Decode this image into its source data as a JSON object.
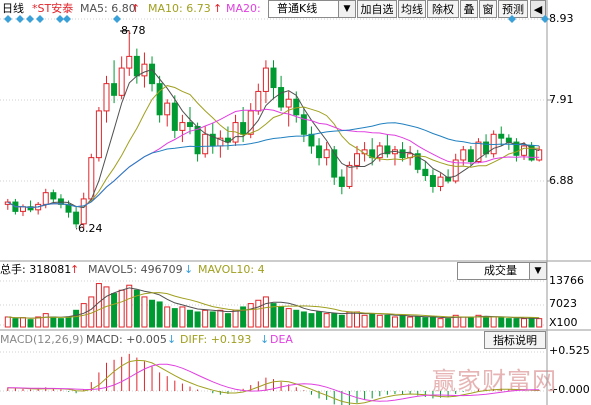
{
  "header": {
    "period": "日线",
    "stock": "*ST安泰",
    "ma5": "MA5: 6.80",
    "ma10": "MA10: 6.73",
    "ma20": "MA20:",
    "ma5_arrow": "↑",
    "ma10_arrow": "↑"
  },
  "toolbar": {
    "kline_select": "普通K线",
    "buttons": [
      "加自选",
      "均线",
      "除权",
      "叠",
      "窗",
      "预测"
    ],
    "close_label": "◀"
  },
  "price_axis": [
    "8.93",
    "7.91",
    "6.88"
  ],
  "annotations": {
    "high": "8.78",
    "low": "6.24"
  },
  "volume": {
    "total": "总手: 318081",
    "total_arrow": "↑",
    "mavol5": "MAVOL5: 496709",
    "mavol5_arrow": "↓",
    "mavol10": "MAVOL10: 4",
    "select": "成交量",
    "axis": [
      "13766",
      "7023",
      "X100"
    ]
  },
  "macd": {
    "params": "MACD(12,26,9)",
    "macd": "MACD: +0.005",
    "macd_arrow": "↓",
    "diff": "DIFF: +0.193",
    "diff_arrow": "↓",
    "dea": "DEA",
    "button": "指标说明",
    "axis": [
      "+0.525",
      "+0.000"
    ]
  },
  "watermark": "赢家财富网",
  "colors": {
    "up": "#e0242a",
    "down": "#009a32",
    "ma5": "#505050",
    "ma10": "#a0a020",
    "ma20": "#e040e0",
    "ma60": "#2080c0",
    "diamond": "#3aa0d8"
  },
  "chart_data": {
    "type": "candlestick",
    "ylim": [
      5.9,
      8.93
    ],
    "candles": [
      [
        6.55,
        6.62,
        6.48,
        6.58
      ],
      [
        6.58,
        6.62,
        6.42,
        6.46
      ],
      [
        6.46,
        6.55,
        6.4,
        6.52
      ],
      [
        6.52,
        6.6,
        6.45,
        6.48
      ],
      [
        6.48,
        6.58,
        6.42,
        6.55
      ],
      [
        6.55,
        6.75,
        6.5,
        6.7
      ],
      [
        6.7,
        6.74,
        6.58,
        6.62
      ],
      [
        6.62,
        6.68,
        6.5,
        6.55
      ],
      [
        6.55,
        6.6,
        6.38,
        6.45
      ],
      [
        6.45,
        6.52,
        6.25,
        6.3
      ],
      [
        6.3,
        6.7,
        6.24,
        6.62
      ],
      [
        6.62,
        7.2,
        6.6,
        7.15
      ],
      [
        7.15,
        7.8,
        7.1,
        7.75
      ],
      [
        7.75,
        8.2,
        7.6,
        8.1
      ],
      [
        8.1,
        8.4,
        7.85,
        7.95
      ],
      [
        7.95,
        8.45,
        7.9,
        8.3
      ],
      [
        8.3,
        8.78,
        8.2,
        8.45
      ],
      [
        8.45,
        8.55,
        8.1,
        8.2
      ],
      [
        8.2,
        8.5,
        8.05,
        8.35
      ],
      [
        8.35,
        8.45,
        8.0,
        8.1
      ],
      [
        8.1,
        8.2,
        7.6,
        7.7
      ],
      [
        7.7,
        7.9,
        7.55,
        7.85
      ],
      [
        7.85,
        7.95,
        7.4,
        7.5
      ],
      [
        7.5,
        7.7,
        7.35,
        7.6
      ],
      [
        7.6,
        7.8,
        7.45,
        7.55
      ],
      [
        7.55,
        7.6,
        7.1,
        7.2
      ],
      [
        7.2,
        7.55,
        7.15,
        7.45
      ],
      [
        7.45,
        7.6,
        7.2,
        7.3
      ],
      [
        7.3,
        7.5,
        7.15,
        7.4
      ],
      [
        7.4,
        7.55,
        7.25,
        7.35
      ],
      [
        7.35,
        7.7,
        7.3,
        7.6
      ],
      [
        7.6,
        7.8,
        7.35,
        7.45
      ],
      [
        7.45,
        7.85,
        7.4,
        7.75
      ],
      [
        7.75,
        8.1,
        7.7,
        8.0
      ],
      [
        8.0,
        8.4,
        7.85,
        8.3
      ],
      [
        8.3,
        8.4,
        7.9,
        8.05
      ],
      [
        8.05,
        8.2,
        7.75,
        7.8
      ],
      [
        7.8,
        8.0,
        7.55,
        7.9
      ],
      [
        7.9,
        8.0,
        7.6,
        7.7
      ],
      [
        7.7,
        7.8,
        7.35,
        7.45
      ],
      [
        7.45,
        7.55,
        7.2,
        7.3
      ],
      [
        7.3,
        7.4,
        7.05,
        7.15
      ],
      [
        7.15,
        7.35,
        7.05,
        7.25
      ],
      [
        7.25,
        7.3,
        6.8,
        6.9
      ],
      [
        6.9,
        7.0,
        6.68,
        6.78
      ],
      [
        6.78,
        7.1,
        6.75,
        7.05
      ],
      [
        7.05,
        7.3,
        7.0,
        7.2
      ],
      [
        7.2,
        7.35,
        7.1,
        7.25
      ],
      [
        7.25,
        7.4,
        7.05,
        7.15
      ],
      [
        7.15,
        7.35,
        7.1,
        7.3
      ],
      [
        7.3,
        7.45,
        7.15,
        7.2
      ],
      [
        7.2,
        7.3,
        7.05,
        7.25
      ],
      [
        7.25,
        7.35,
        7.1,
        7.15
      ],
      [
        7.15,
        7.3,
        7.05,
        7.2
      ],
      [
        7.2,
        7.25,
        6.95,
        7.0
      ],
      [
        7.0,
        7.1,
        6.85,
        6.92
      ],
      [
        6.92,
        7.0,
        6.7,
        6.78
      ],
      [
        6.78,
        6.95,
        6.72,
        6.9
      ],
      [
        6.9,
        7.0,
        6.82,
        6.85
      ],
      [
        6.85,
        7.2,
        6.82,
        7.12
      ],
      [
        7.12,
        7.3,
        7.05,
        7.25
      ],
      [
        7.25,
        7.3,
        7.05,
        7.1
      ],
      [
        7.1,
        7.4,
        7.08,
        7.35
      ],
      [
        7.35,
        7.45,
        7.15,
        7.2
      ],
      [
        7.2,
        7.5,
        7.15,
        7.45
      ],
      [
        7.45,
        7.55,
        7.3,
        7.4
      ],
      [
        7.4,
        7.45,
        7.25,
        7.35
      ],
      [
        7.35,
        7.4,
        7.1,
        7.18
      ],
      [
        7.18,
        7.35,
        7.12,
        7.3
      ],
      [
        7.3,
        7.35,
        7.1,
        7.12
      ],
      [
        7.12,
        7.3,
        7.1,
        7.25
      ]
    ],
    "volume": [
      3,
      2.5,
      2.8,
      2.2,
      3,
      4,
      3,
      2.5,
      3,
      5,
      7,
      9,
      13,
      12,
      10,
      11,
      12.5,
      11,
      9,
      8,
      7.5,
      6,
      5.5,
      6,
      5,
      4.5,
      5,
      4.5,
      5,
      4,
      5,
      6,
      7,
      8,
      9,
      7,
      6,
      5.5,
      5,
      4.5,
      4,
      4.5,
      4,
      4,
      3.5,
      4.5,
      4.5,
      3.5,
      4,
      3.5,
      3.5,
      3,
      3.5,
      3,
      3,
      2.8,
      3,
      2.5,
      2.5,
      3.5,
      3,
      3,
      3.5,
      3,
      3,
      2.8,
      2.5,
      2.5,
      2.5,
      2.8,
      2.5
    ],
    "macd": [
      0.05,
      0.04,
      0.03,
      0.02,
      0.03,
      0.05,
      0.04,
      0.02,
      -0.01,
      -0.03,
      0.02,
      0.12,
      0.25,
      0.38,
      0.42,
      0.46,
      0.5,
      0.45,
      0.4,
      0.33,
      0.25,
      0.2,
      0.14,
      0.1,
      0.06,
      0.02,
      0.0,
      -0.03,
      -0.05,
      -0.04,
      0.0,
      0.03,
      0.08,
      0.13,
      0.18,
      0.16,
      0.12,
      0.09,
      0.05,
      0.01,
      -0.05,
      -0.1,
      -0.12,
      -0.18,
      -0.22,
      -0.2,
      -0.16,
      -0.12,
      -0.1,
      -0.07,
      -0.05,
      -0.04,
      -0.05,
      -0.04,
      -0.06,
      -0.08,
      -0.1,
      -0.09,
      -0.08,
      -0.04,
      -0.01,
      0.0,
      0.02,
      0.02,
      0.03,
      0.03,
      0.02,
      0.01,
      0.01,
      0.0,
      0.01
    ]
  }
}
